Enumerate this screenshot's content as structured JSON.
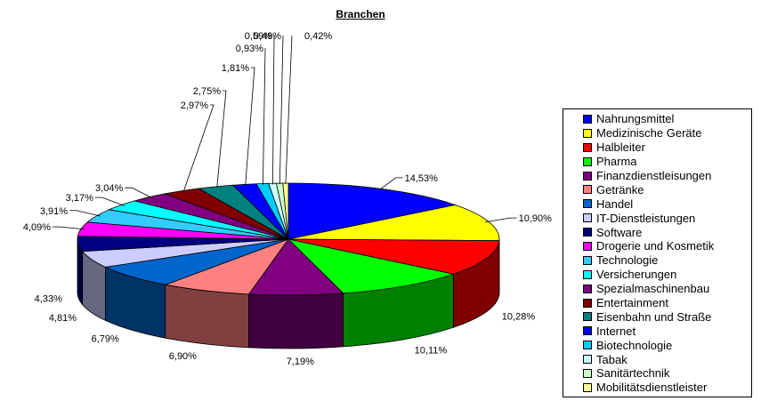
{
  "chart_data": {
    "type": "pie",
    "title": "Branchen",
    "legend_position": "right",
    "slices": [
      {
        "name": "Nahrungsmittel",
        "value": 14.53,
        "label": "14,53%",
        "color": "#0000FF"
      },
      {
        "name": "Medizinische Geräte",
        "value": 10.9,
        "label": "10,90%",
        "color": "#FFFF00"
      },
      {
        "name": "Halbleiter",
        "value": 10.28,
        "label": "10,28%",
        "color": "#FF0000"
      },
      {
        "name": "Pharma",
        "value": 10.11,
        "label": "10,11%",
        "color": "#00FF00"
      },
      {
        "name": "Finanzdienstleisungen",
        "value": 7.19,
        "label": "7,19%",
        "color": "#800080"
      },
      {
        "name": "Getränke",
        "value": 6.9,
        "label": "6,90%",
        "color": "#FF8080"
      },
      {
        "name": "Handel",
        "value": 6.79,
        "label": "6,79%",
        "color": "#0066CC"
      },
      {
        "name": "IT-Dienstleistungen",
        "value": 4.81,
        "label": "4,81%",
        "color": "#CCCCFF"
      },
      {
        "name": "Software",
        "value": 4.33,
        "label": "4,33%",
        "color": "#000080"
      },
      {
        "name": "Drogerie und Kosmetik",
        "value": 4.09,
        "label": "4,09%",
        "color": "#FF00FF"
      },
      {
        "name": "Technologie",
        "value": 3.91,
        "label": "3,91%",
        "color": "#33CCFF"
      },
      {
        "name": "Versicherungen",
        "value": 3.17,
        "label": "3,17%",
        "color": "#00FFFF"
      },
      {
        "name": "Spezialmaschinenbau",
        "value": 3.04,
        "label": "3,04%",
        "color": "#800080"
      },
      {
        "name": "Entertainment",
        "value": 2.97,
        "label": "2,97%",
        "color": "#800000"
      },
      {
        "name": "Eisenbahn und Straße",
        "value": 2.75,
        "label": "2,75%",
        "color": "#008080"
      },
      {
        "name": "Internet",
        "value": 1.81,
        "label": "1,81%",
        "color": "#0000FF"
      },
      {
        "name": "Biotechnologie",
        "value": 0.93,
        "label": "0,93%",
        "color": "#00CCFF"
      },
      {
        "name": "Tabak",
        "value": 0.59,
        "label": "0,59%",
        "color": "#CCFFFF"
      },
      {
        "name": "Sanitärtechnik",
        "value": 0.49,
        "label": "0,49%",
        "color": "#CCFFCC"
      },
      {
        "name": "Mobilitätsdienstleister",
        "value": 0.42,
        "label": "0,42%",
        "color": "#FFFF99"
      }
    ]
  }
}
